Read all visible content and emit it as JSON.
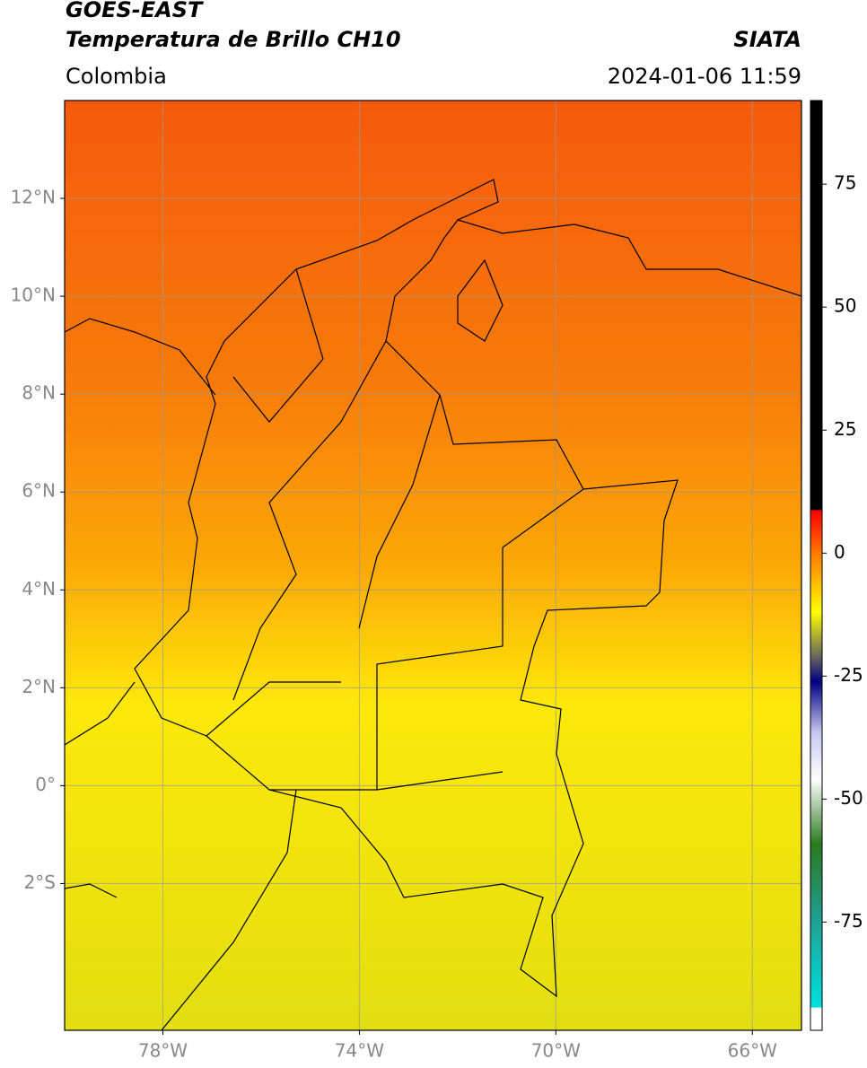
{
  "header": {
    "title": "GOES-EAST",
    "subtitle": "Temperatura de Brillo CH10",
    "source": "SIATA",
    "region": "Colombia",
    "datetime": "2024-01-06 11:59"
  },
  "map": {
    "lonlim": [
      -80,
      -65
    ],
    "latlim": [
      -5,
      14
    ],
    "grid": true,
    "lonticks": [
      {
        "value": -78,
        "label": "78°W"
      },
      {
        "value": -74,
        "label": "74°W"
      },
      {
        "value": -70,
        "label": "70°W"
      },
      {
        "value": -66,
        "label": "66°W"
      }
    ],
    "latticks": [
      {
        "value": 12,
        "label": "12°N"
      },
      {
        "value": 10,
        "label": "10°N"
      },
      {
        "value": 8,
        "label": "8°N"
      },
      {
        "value": 6,
        "label": "6°N"
      },
      {
        "value": 4,
        "label": "4°N"
      },
      {
        "value": 2,
        "label": "2°N"
      },
      {
        "value": 0,
        "label": "0°"
      },
      {
        "value": -2,
        "label": "2°S"
      }
    ]
  },
  "colorbar": {
    "lim": [
      -97,
      92
    ],
    "ticks": [
      75,
      50,
      25,
      0,
      -25,
      -50,
      -75
    ]
  }
}
